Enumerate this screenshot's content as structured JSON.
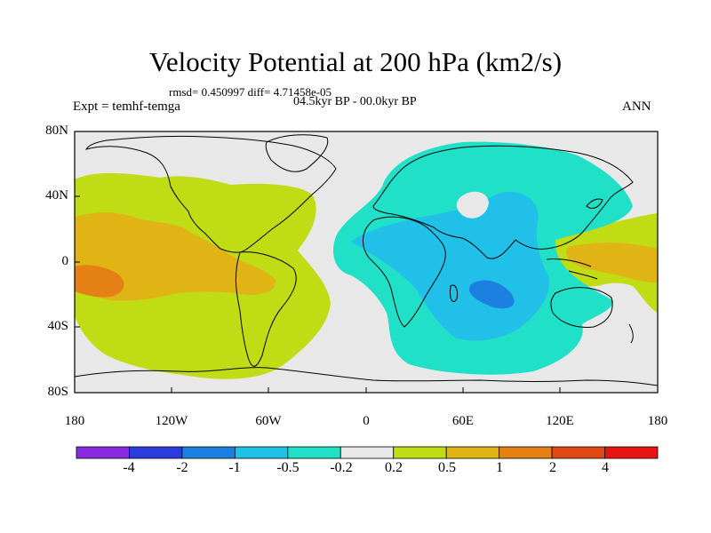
{
  "title": "Velocity Potential at 200 hPa (km2/s)",
  "stats": "rmsd= 0.450997  diff= 4.71458e-05",
  "period": "04.5kyr BP - 00.0kyr BP",
  "experiment": "Expt = temhf-temga",
  "season": "ANN",
  "y_axis": {
    "ticks": [
      "80N",
      "40N",
      "0",
      "40S",
      "80S"
    ]
  },
  "x_axis": {
    "ticks": [
      "180",
      "120W",
      "60W",
      "0",
      "60E",
      "120E",
      "180"
    ]
  },
  "colorbar": {
    "colors": [
      "#8a2be2",
      "#2a3cdc",
      "#1c80e0",
      "#20c0e8",
      "#20e0c8",
      "#e8e8e8",
      "#c0dc14",
      "#e0b414",
      "#e48014",
      "#e04814",
      "#e81414"
    ],
    "labels": [
      "-4",
      "-2",
      "-1",
      "-0.5",
      "-0.2",
      "0.2",
      "0.5",
      "1",
      "2",
      "4"
    ]
  },
  "field_colors": {
    "neutral": "#e8e8e8",
    "pos_0_5": "#c0dc14",
    "pos_1": "#e0b414",
    "pos_2": "#e48014",
    "neg_0_2": "#20e0c8",
    "neg_0_5": "#20c0e8",
    "neg_1": "#1c80e0"
  }
}
